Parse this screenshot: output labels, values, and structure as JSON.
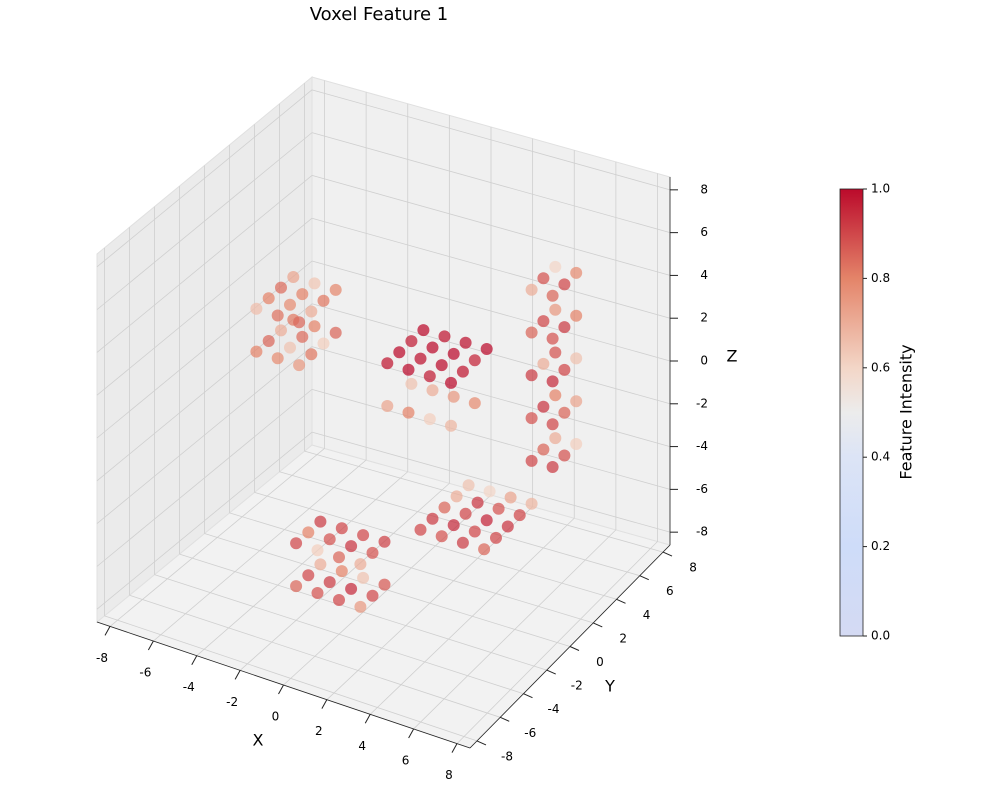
{
  "chart_data": {
    "type": "scatter3d",
    "title": "Voxel Feature 1",
    "x_label": "X",
    "y_label": "Y",
    "z_label": "Z",
    "colorbar_label": "Feature Intensity",
    "colormap": "coolwarm",
    "clim": [
      0,
      1
    ],
    "cticks": [
      {
        "value": 0,
        "label": "0.0"
      },
      0.2,
      0.4,
      0.6,
      0.8,
      {
        "value": 1,
        "label": "1.0"
      }
    ],
    "xlim": [
      -8.6,
      8.6
    ],
    "ylim": [
      -8.6,
      8.6
    ],
    "zlim": [
      -8.6,
      8.6
    ],
    "xticks": [
      -8,
      -6,
      -4,
      -2,
      0,
      2,
      4,
      6,
      8
    ],
    "yticks": [
      -8,
      -6,
      -4,
      -2,
      0,
      2,
      4,
      6,
      8
    ],
    "zticks": [
      -8,
      -6,
      -4,
      -2,
      0,
      2,
      4,
      6,
      8
    ],
    "grid": true,
    "x": [
      -2,
      -2,
      -2,
      -1,
      -1,
      -1,
      0,
      0,
      0,
      1,
      1,
      1,
      -2,
      -2,
      -2,
      -1,
      -1,
      -1,
      0,
      0,
      0,
      1,
      1,
      1,
      1,
      1,
      1,
      1,
      1,
      2,
      2,
      2,
      2,
      2,
      3,
      3,
      3,
      3,
      3,
      4,
      4,
      4,
      4,
      4,
      0,
      0,
      0,
      0,
      1,
      1,
      1,
      1,
      2,
      2,
      2,
      2,
      3,
      3,
      3,
      3,
      0,
      0,
      1,
      1,
      2,
      2,
      3,
      3,
      -5,
      -5,
      -5,
      -5,
      -4,
      -4,
      -4,
      -4,
      -3,
      -3,
      -3,
      -3,
      -5,
      -5,
      -5,
      -5,
      -4,
      -4,
      -4,
      -4,
      -3,
      -3,
      -3,
      -3,
      4,
      4,
      4,
      5,
      5,
      5,
      4,
      4,
      4,
      5,
      5,
      5,
      4,
      4,
      4,
      5,
      5,
      5,
      4,
      4,
      4,
      5,
      5,
      5,
      4,
      4,
      4,
      5,
      5,
      5
    ],
    "y": [
      -4,
      -3,
      -2,
      -4,
      -3,
      -2,
      -4,
      -3,
      -2,
      -4,
      -3,
      -2,
      -4,
      -3,
      -2,
      -4,
      -3,
      -2,
      -4,
      -3,
      -2,
      -4,
      -3,
      -2,
      1,
      2,
      3,
      4,
      5,
      1,
      2,
      3,
      4,
      5,
      1,
      2,
      3,
      4,
      5,
      1,
      2,
      3,
      4,
      5,
      0,
      1,
      2,
      3,
      0,
      1,
      2,
      3,
      0,
      1,
      2,
      3,
      0,
      1,
      2,
      3,
      0,
      2,
      0,
      2,
      0,
      2,
      0,
      2,
      -2,
      -1,
      0,
      1,
      -2,
      -1,
      0,
      1,
      -2,
      -1,
      0,
      1,
      -2,
      -1,
      0,
      1,
      -2,
      -1,
      0,
      1,
      -2,
      -1,
      0,
      1,
      5,
      6,
      7,
      5,
      6,
      7,
      5,
      6,
      7,
      5,
      6,
      7,
      5,
      6,
      7,
      5,
      6,
      7,
      5,
      6,
      7,
      5,
      6,
      7,
      5,
      6,
      7,
      5,
      6,
      7
    ],
    "z": [
      -7,
      -7,
      -7,
      -7,
      -7,
      -7,
      -7,
      -7,
      -7,
      -7,
      -7,
      -7,
      -5,
      -5,
      -5,
      -5,
      -5,
      -5,
      -5,
      -5,
      -5,
      -5,
      -5,
      -5,
      -6,
      -6,
      -6,
      -6,
      -6,
      -6,
      -6,
      -6,
      -6,
      -6,
      -6,
      -6,
      -6,
      -6,
      -6,
      -6,
      -6,
      -6,
      -6,
      -6,
      2,
      2,
      2,
      2,
      2,
      2,
      2,
      2,
      2,
      2,
      2,
      2,
      2,
      2,
      2,
      2,
      0,
      0,
      0,
      0,
      0,
      0,
      0,
      0,
      2,
      2,
      2,
      2,
      2,
      2,
      2,
      2,
      2,
      2,
      2,
      2,
      4,
      4,
      4,
      4,
      4,
      4,
      4,
      4,
      4,
      4,
      4,
      4,
      -4,
      -4,
      -4,
      -4,
      -4,
      -4,
      -2,
      -2,
      -2,
      -2,
      -2,
      -2,
      0,
      0,
      0,
      0,
      0,
      0,
      2,
      2,
      2,
      2,
      2,
      2,
      4,
      4,
      4,
      4,
      4,
      4
    ],
    "values": [
      0.85,
      0.9,
      0.7,
      0.88,
      0.92,
      0.8,
      0.9,
      0.95,
      0.65,
      0.75,
      0.9,
      0.87,
      0.9,
      0.8,
      0.92,
      0.62,
      0.88,
      0.9,
      0.85,
      0.93,
      0.9,
      0.7,
      0.88,
      0.91,
      0.9,
      0.92,
      0.85,
      0.7,
      0.65,
      0.88,
      0.95,
      0.9,
      0.93,
      0.6,
      0.92,
      0.9,
      0.96,
      0.88,
      0.72,
      0.85,
      0.9,
      0.93,
      0.9,
      0.68,
      0.98,
      1,
      0.97,
      1,
      1,
      0.99,
      1,
      0.98,
      0.97,
      1,
      1,
      0.99,
      1,
      0.98,
      0.96,
      1,
      0.72,
      0.65,
      0.8,
      0.7,
      0.62,
      0.75,
      0.68,
      0.78,
      0.8,
      0.85,
      0.7,
      0.82,
      0.78,
      0.65,
      0.84,
      0.8,
      0.75,
      0.82,
      0.62,
      0.85,
      0.66,
      0.8,
      0.84,
      0.72,
      0.83,
      0.78,
      0.8,
      0.64,
      0.85,
      0.7,
      0.82,
      0.79,
      0.9,
      0.85,
      0.7,
      0.92,
      0.88,
      0.62,
      0.88,
      0.93,
      0.8,
      0.9,
      0.85,
      0.72,
      0.92,
      0.7,
      0.88,
      0.95,
      0.9,
      0.65,
      0.85,
      0.9,
      0.75,
      0.88,
      0.92,
      0.8,
      0.7,
      0.88,
      0.6,
      0.85,
      0.9,
      0.78
    ]
  }
}
